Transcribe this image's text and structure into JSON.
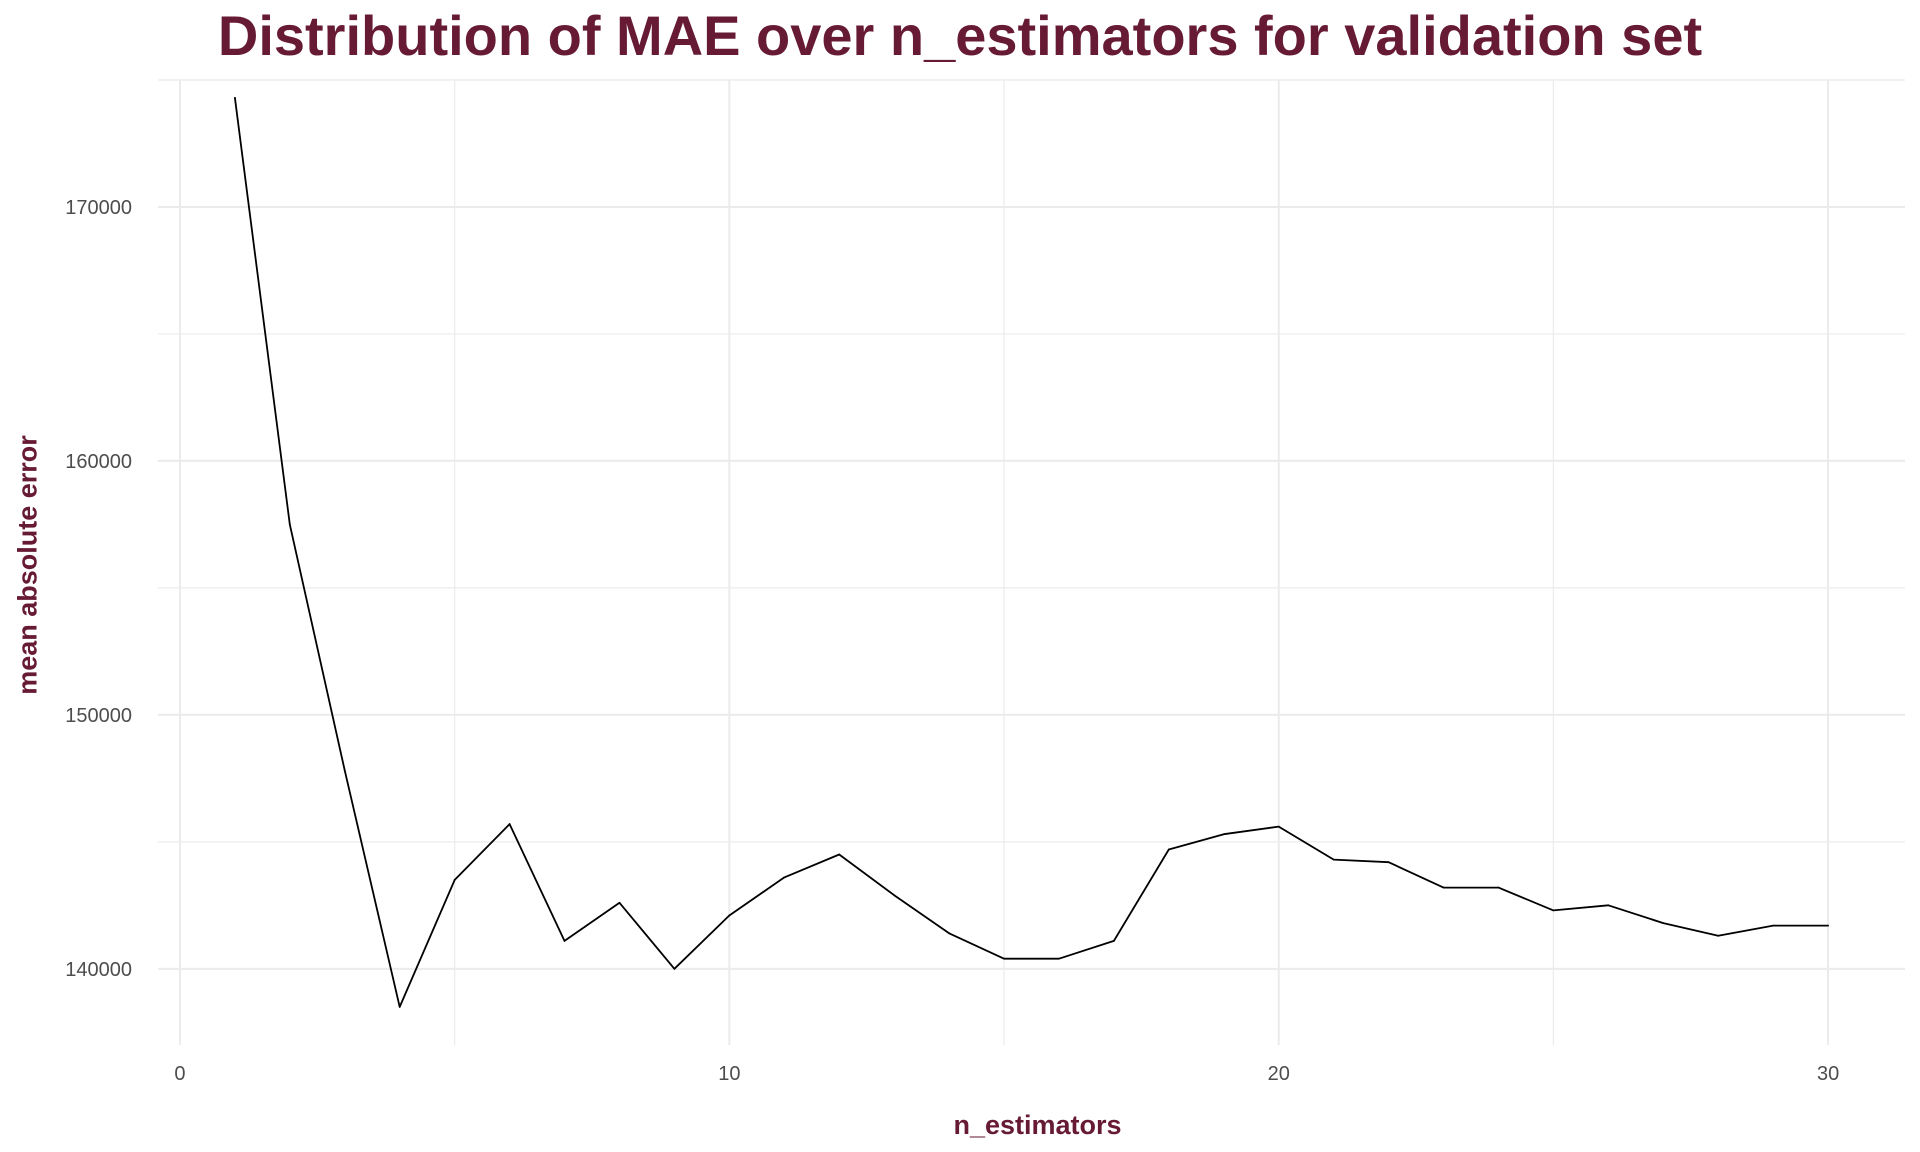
{
  "chart_data": {
    "type": "line",
    "title": "Distribution of MAE over n_estimators for validation set",
    "xlabel": "n_estimators",
    "ylabel": "mean absolute error",
    "xlim": [
      -0.4,
      31.4
    ],
    "ylim": [
      137000,
      175000
    ],
    "x_ticks": [
      0,
      10,
      20,
      30
    ],
    "y_ticks": [
      140000,
      150000,
      160000,
      170000
    ],
    "grid": true,
    "series": [
      {
        "x": [
          1,
          2,
          3,
          4,
          5,
          6,
          7,
          8,
          9,
          10,
          11,
          12,
          13,
          14,
          15,
          16,
          17,
          18,
          19,
          20,
          21,
          22,
          23,
          24,
          25,
          26,
          27,
          28,
          29,
          30
        ],
        "values": [
          174300,
          157500,
          147800,
          138500,
          143500,
          145700,
          141100,
          142600,
          140000,
          142100,
          143600,
          144500,
          142900,
          141400,
          140400,
          140400,
          141100,
          144700,
          145300,
          145600,
          144300,
          144200,
          143200,
          143200,
          142300,
          142500,
          141800,
          141300,
          141700,
          141700
        ]
      }
    ],
    "colors": {
      "title": "#661a33",
      "line": "#000000",
      "grid": "#ebebeb",
      "tick": "#4d4d4d"
    }
  }
}
